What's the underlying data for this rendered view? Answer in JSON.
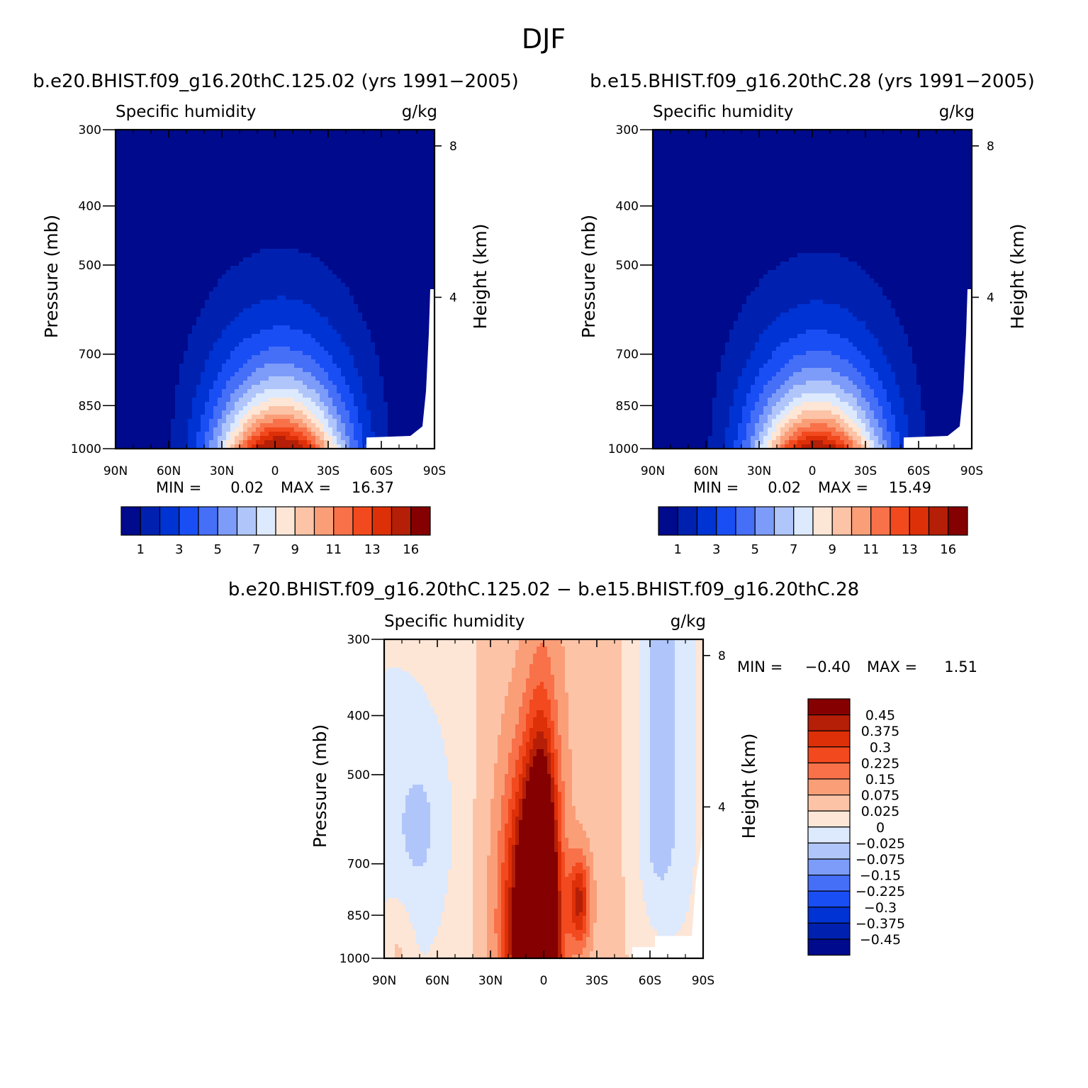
{
  "figure": {
    "title": "DJF"
  },
  "chart_data": [
    {
      "type": "heatmap",
      "title": "b.e20.BHIST.f09_g16.20thC.125.02 (yrs 1991−2005)",
      "left_label": "Specific humidity",
      "right_label": "g/kg",
      "ylabel": "Pressure (mb)",
      "y2label": "Height (km)",
      "x_ticks": [
        "90N",
        "60N",
        "30N",
        "0",
        "30S",
        "60S",
        "90S"
      ],
      "y_ticks": [
        "300",
        "400",
        "500",
        "700",
        "850",
        "1000"
      ],
      "y2_ticks": [
        "8",
        "4"
      ],
      "ylim": [
        300,
        1000
      ],
      "y_scale": "log",
      "min_label": "MIN =",
      "min_value": "0.02",
      "max_label": "MAX =",
      "max_value": "16.37",
      "peak": 16.37,
      "colorbar": {
        "orientation": "horizontal",
        "colors": [
          "#000a8c",
          "#0021b0",
          "#0033d3",
          "#1a4ef5",
          "#466ff7",
          "#7d9cf9",
          "#b0c6fb",
          "#dde9fd",
          "#fde6d6",
          "#fcc3a7",
          "#fa9e78",
          "#f87149",
          "#f24a1e",
          "#de3008",
          "#b51f07",
          "#850000"
        ],
        "labels": [
          "1",
          "3",
          "5",
          "7",
          "9",
          "11",
          "13",
          "16"
        ]
      }
    },
    {
      "type": "heatmap",
      "title": "b.e15.BHIST.f09_g16.20thC.28 (yrs 1991−2005)",
      "left_label": "Specific humidity",
      "right_label": "g/kg",
      "ylabel": "Pressure (mb)",
      "y2label": "Height (km)",
      "x_ticks": [
        "90N",
        "60N",
        "30N",
        "0",
        "30S",
        "60S",
        "90S"
      ],
      "y_ticks": [
        "300",
        "400",
        "500",
        "700",
        "850",
        "1000"
      ],
      "y2_ticks": [
        "8",
        "4"
      ],
      "ylim": [
        300,
        1000
      ],
      "y_scale": "log",
      "min_label": "MIN =",
      "min_value": "0.02",
      "max_label": "MAX =",
      "max_value": "15.49",
      "peak": 15.49,
      "colorbar": {
        "orientation": "horizontal",
        "colors": [
          "#000a8c",
          "#0021b0",
          "#0033d3",
          "#1a4ef5",
          "#466ff7",
          "#7d9cf9",
          "#b0c6fb",
          "#dde9fd",
          "#fde6d6",
          "#fcc3a7",
          "#fa9e78",
          "#f87149",
          "#f24a1e",
          "#de3008",
          "#b51f07",
          "#850000"
        ],
        "labels": [
          "1",
          "3",
          "5",
          "7",
          "9",
          "11",
          "13",
          "16"
        ]
      }
    },
    {
      "type": "heatmap",
      "title": "b.e20.BHIST.f09_g16.20thC.125.02 − b.e15.BHIST.f09_g16.20thC.28",
      "left_label": "Specific humidity",
      "right_label": "g/kg",
      "ylabel": "Pressure (mb)",
      "y2label": "Height (km)",
      "x_ticks": [
        "90N",
        "60N",
        "30N",
        "0",
        "30S",
        "60S",
        "90S"
      ],
      "y_ticks": [
        "300",
        "400",
        "500",
        "700",
        "850",
        "1000"
      ],
      "y2_ticks": [
        "8",
        "4"
      ],
      "ylim": [
        300,
        1000
      ],
      "y_scale": "log",
      "min_label": "MIN =",
      "min_value": "−0.40",
      "max_label": "MAX =",
      "max_value": "1.51",
      "colorbar": {
        "orientation": "vertical",
        "colors": [
          "#850000",
          "#b51f07",
          "#de3008",
          "#f24a1e",
          "#f87149",
          "#fa9e78",
          "#fcc3a7",
          "#fde6d6",
          "#dde9fd",
          "#b0c6fb",
          "#7d9cf9",
          "#466ff7",
          "#1a4ef5",
          "#0033d3",
          "#0021b0",
          "#000a8c"
        ],
        "labels": [
          "0.45",
          "0.375",
          "0.3",
          "0.225",
          "0.15",
          "0.075",
          "0.025",
          "0",
          "−0.025",
          "−0.075",
          "−0.15",
          "−0.225",
          "−0.3",
          "−0.375",
          "−0.45"
        ]
      }
    }
  ]
}
